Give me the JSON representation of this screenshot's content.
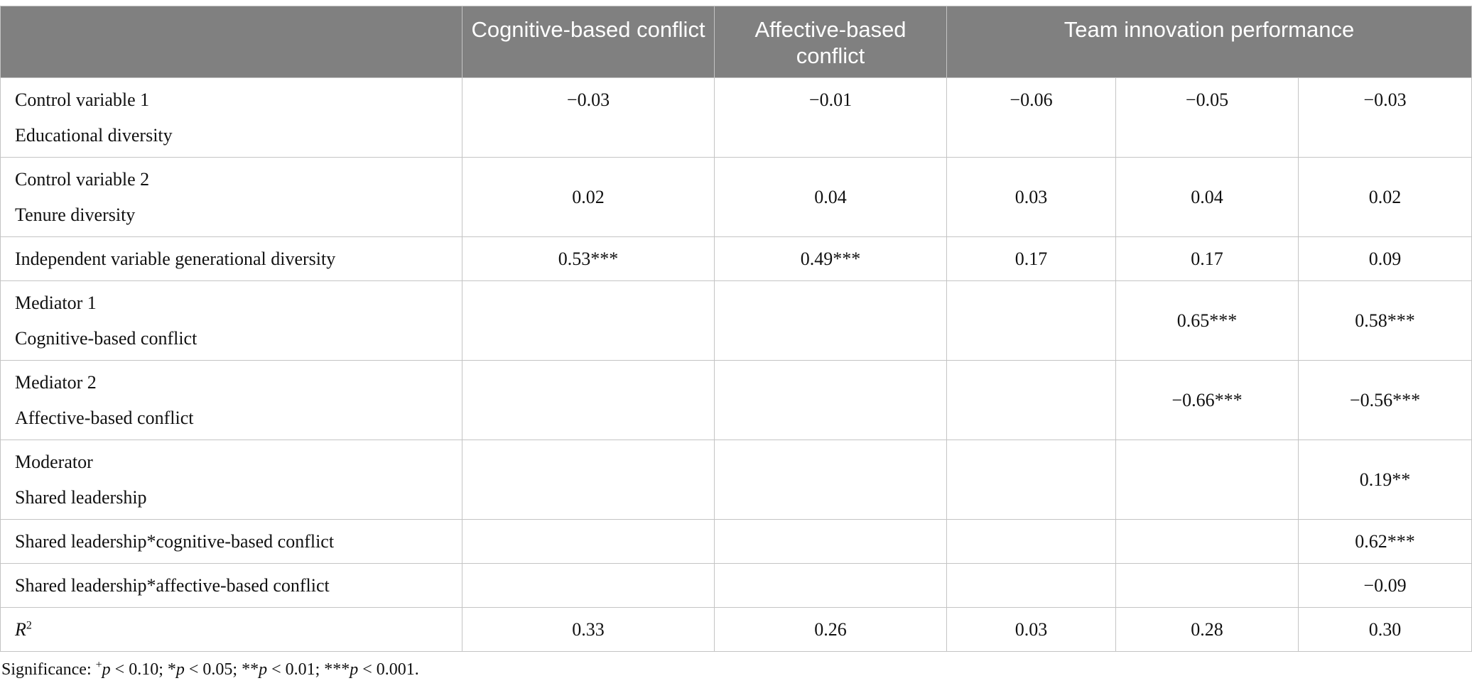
{
  "header": {
    "col0": "",
    "col1": "Cognitive-based conflict",
    "col2": "Affective-based conflict",
    "col3": "Team innovation performance"
  },
  "rows": [
    {
      "label1": "Control variable 1",
      "label2": "Educational diversity",
      "values": [
        "−0.03",
        "−0.01",
        "−0.06",
        "−0.05",
        "−0.03"
      ]
    },
    {
      "label1": "Control variable 2",
      "label2": "Tenure diversity",
      "values": [
        "0.02",
        "0.04",
        "0.03",
        "0.04",
        "0.02"
      ]
    },
    {
      "label1": "Independent variable generational diversity",
      "values": [
        "0.53***",
        "0.49***",
        "0.17",
        "0.17",
        "0.09"
      ]
    },
    {
      "label1": "Mediator 1",
      "label2": "Cognitive-based conflict",
      "values": [
        "",
        "",
        "",
        "0.65***",
        "0.58***"
      ]
    },
    {
      "label1": "Mediator 2",
      "label2": "Affective-based conflict",
      "values": [
        "",
        "",
        "",
        "−0.66***",
        "−0.56***"
      ]
    },
    {
      "label1": "Moderator",
      "label2": "Shared leadership",
      "values": [
        "",
        "",
        "",
        "",
        "0.19**"
      ]
    },
    {
      "label1": "Shared leadership*cognitive-based conflict",
      "values": [
        "",
        "",
        "",
        "",
        "0.62***"
      ]
    },
    {
      "label1": "Shared leadership*affective-based conflict",
      "values": [
        "",
        "",
        "",
        "",
        "−0.09"
      ]
    },
    {
      "label1": "R",
      "label1_sup": "2",
      "values": [
        "0.33",
        "0.26",
        "0.03",
        "0.28",
        "0.30"
      ]
    }
  ],
  "note": {
    "prefix": "Significance: ",
    "p1_sym": "+",
    "p1": " < 0.10; *",
    "p2": " < 0.05; **",
    "p3": " < 0.01; ***",
    "p4": " < 0.001.",
    "p_letter": "p"
  }
}
